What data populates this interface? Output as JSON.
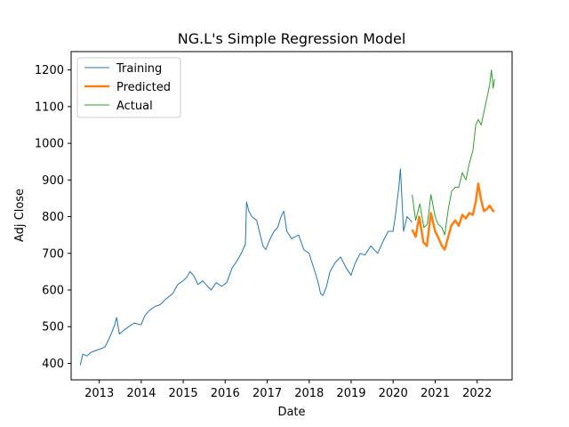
{
  "chart_data": {
    "type": "line",
    "title": "NG.L's Simple Regression Model",
    "xlabel": "Date",
    "ylabel": "Adj Close",
    "xlim": [
      "2012-05-01",
      "2022-11-01"
    ],
    "ylim": [
      355,
      1250
    ],
    "x_ticks": [
      "2013",
      "2014",
      "2015",
      "2016",
      "2017",
      "2018",
      "2019",
      "2020",
      "2021",
      "2022"
    ],
    "y_ticks": [
      400,
      500,
      600,
      700,
      800,
      900,
      1000,
      1100,
      1200
    ],
    "grid": false,
    "legend_position": "top-left",
    "series": [
      {
        "name": "Training",
        "color": "#1f77b4",
        "line_width": 1,
        "points": [
          [
            "2012-07-20",
            395
          ],
          [
            "2012-08-10",
            425
          ],
          [
            "2012-09-15",
            420
          ],
          [
            "2012-10-20",
            430
          ],
          [
            "2012-12-01",
            435
          ],
          [
            "2013-01-15",
            440
          ],
          [
            "2013-02-20",
            445
          ],
          [
            "2013-04-01",
            470
          ],
          [
            "2013-05-15",
            505
          ],
          [
            "2013-06-01",
            525
          ],
          [
            "2013-06-25",
            480
          ],
          [
            "2013-08-01",
            490
          ],
          [
            "2013-09-15",
            500
          ],
          [
            "2013-11-01",
            510
          ],
          [
            "2013-12-31",
            505
          ],
          [
            "2014-02-01",
            530
          ],
          [
            "2014-03-15",
            545
          ],
          [
            "2014-05-01",
            555
          ],
          [
            "2014-06-15",
            560
          ],
          [
            "2014-08-01",
            575
          ],
          [
            "2014-10-01",
            590
          ],
          [
            "2014-11-15",
            615
          ],
          [
            "2014-12-31",
            625
          ],
          [
            "2015-02-01",
            635
          ],
          [
            "2015-03-01",
            650
          ],
          [
            "2015-04-01",
            640
          ],
          [
            "2015-05-10",
            615
          ],
          [
            "2015-06-20",
            625
          ],
          [
            "2015-08-01",
            610
          ],
          [
            "2015-09-01",
            600
          ],
          [
            "2015-10-15",
            620
          ],
          [
            "2015-12-01",
            610
          ],
          [
            "2016-01-15",
            620
          ],
          [
            "2016-03-01",
            660
          ],
          [
            "2016-04-15",
            680
          ],
          [
            "2016-05-20",
            700
          ],
          [
            "2016-06-25",
            725
          ],
          [
            "2016-07-05",
            840
          ],
          [
            "2016-07-25",
            815
          ],
          [
            "2016-08-20",
            800
          ],
          [
            "2016-10-01",
            790
          ],
          [
            "2016-11-01",
            750
          ],
          [
            "2016-11-25",
            720
          ],
          [
            "2016-12-20",
            710
          ],
          [
            "2017-01-20",
            735
          ],
          [
            "2017-03-01",
            760
          ],
          [
            "2017-04-01",
            770
          ],
          [
            "2017-05-01",
            800
          ],
          [
            "2017-05-25",
            815
          ],
          [
            "2017-06-20",
            760
          ],
          [
            "2017-08-01",
            740
          ],
          [
            "2017-10-01",
            750
          ],
          [
            "2017-11-15",
            710
          ],
          [
            "2017-12-31",
            700
          ],
          [
            "2018-01-20",
            680
          ],
          [
            "2018-02-20",
            650
          ],
          [
            "2018-03-20",
            620
          ],
          [
            "2018-04-10",
            590
          ],
          [
            "2018-05-01",
            585
          ],
          [
            "2018-06-01",
            610
          ],
          [
            "2018-07-01",
            650
          ],
          [
            "2018-08-15",
            675
          ],
          [
            "2018-10-01",
            690
          ],
          [
            "2018-11-20",
            660
          ],
          [
            "2018-12-31",
            640
          ],
          [
            "2019-02-01",
            670
          ],
          [
            "2019-03-20",
            700
          ],
          [
            "2019-05-01",
            695
          ],
          [
            "2019-06-20",
            720
          ],
          [
            "2019-08-20",
            700
          ],
          [
            "2019-10-01",
            730
          ],
          [
            "2019-11-20",
            760
          ],
          [
            "2019-12-31",
            760
          ],
          [
            "2020-01-20",
            800
          ],
          [
            "2020-02-20",
            880
          ],
          [
            "2020-03-05",
            930
          ],
          [
            "2020-03-18",
            850
          ],
          [
            "2020-04-01",
            760
          ],
          [
            "2020-05-01",
            800
          ],
          [
            "2020-06-15",
            785
          ]
        ]
      },
      {
        "name": "Predicted",
        "color": "#ff7f0e",
        "line_width": 2.5,
        "points": [
          [
            "2020-06-15",
            765
          ],
          [
            "2020-07-15",
            745
          ],
          [
            "2020-08-15",
            800
          ],
          [
            "2020-09-20",
            730
          ],
          [
            "2020-10-20",
            720
          ],
          [
            "2020-11-25",
            810
          ],
          [
            "2020-12-31",
            760
          ],
          [
            "2021-01-25",
            745
          ],
          [
            "2021-03-01",
            720
          ],
          [
            "2021-03-25",
            710
          ],
          [
            "2021-04-20",
            740
          ],
          [
            "2021-05-20",
            775
          ],
          [
            "2021-06-25",
            790
          ],
          [
            "2021-07-25",
            775
          ],
          [
            "2021-08-25",
            805
          ],
          [
            "2021-09-25",
            795
          ],
          [
            "2021-10-25",
            810
          ],
          [
            "2021-11-25",
            805
          ],
          [
            "2021-12-20",
            840
          ],
          [
            "2022-01-10",
            890
          ],
          [
            "2022-02-05",
            845
          ],
          [
            "2022-03-01",
            815
          ],
          [
            "2022-03-25",
            820
          ],
          [
            "2022-04-20",
            830
          ],
          [
            "2022-05-20",
            815
          ],
          [
            "2022-06-01",
            815
          ]
        ]
      },
      {
        "name": "Actual",
        "color": "#2ca02c",
        "line_width": 1,
        "points": [
          [
            "2020-06-15",
            860
          ],
          [
            "2020-07-15",
            790
          ],
          [
            "2020-08-20",
            835
          ],
          [
            "2020-09-25",
            770
          ],
          [
            "2020-10-25",
            780
          ],
          [
            "2020-11-25",
            860
          ],
          [
            "2020-12-31",
            800
          ],
          [
            "2021-01-25",
            780
          ],
          [
            "2021-03-01",
            770
          ],
          [
            "2021-03-25",
            750
          ],
          [
            "2021-04-25",
            820
          ],
          [
            "2021-05-25",
            870
          ],
          [
            "2021-06-25",
            880
          ],
          [
            "2021-07-25",
            880
          ],
          [
            "2021-08-25",
            920
          ],
          [
            "2021-09-25",
            900
          ],
          [
            "2021-10-25",
            945
          ],
          [
            "2021-11-25",
            980
          ],
          [
            "2021-12-20",
            1050
          ],
          [
            "2022-01-10",
            1065
          ],
          [
            "2022-02-05",
            1050
          ],
          [
            "2022-03-01",
            1085
          ],
          [
            "2022-03-25",
            1120
          ],
          [
            "2022-04-20",
            1160
          ],
          [
            "2022-05-05",
            1200
          ],
          [
            "2022-05-20",
            1150
          ],
          [
            "2022-06-01",
            1175
          ]
        ]
      }
    ]
  }
}
